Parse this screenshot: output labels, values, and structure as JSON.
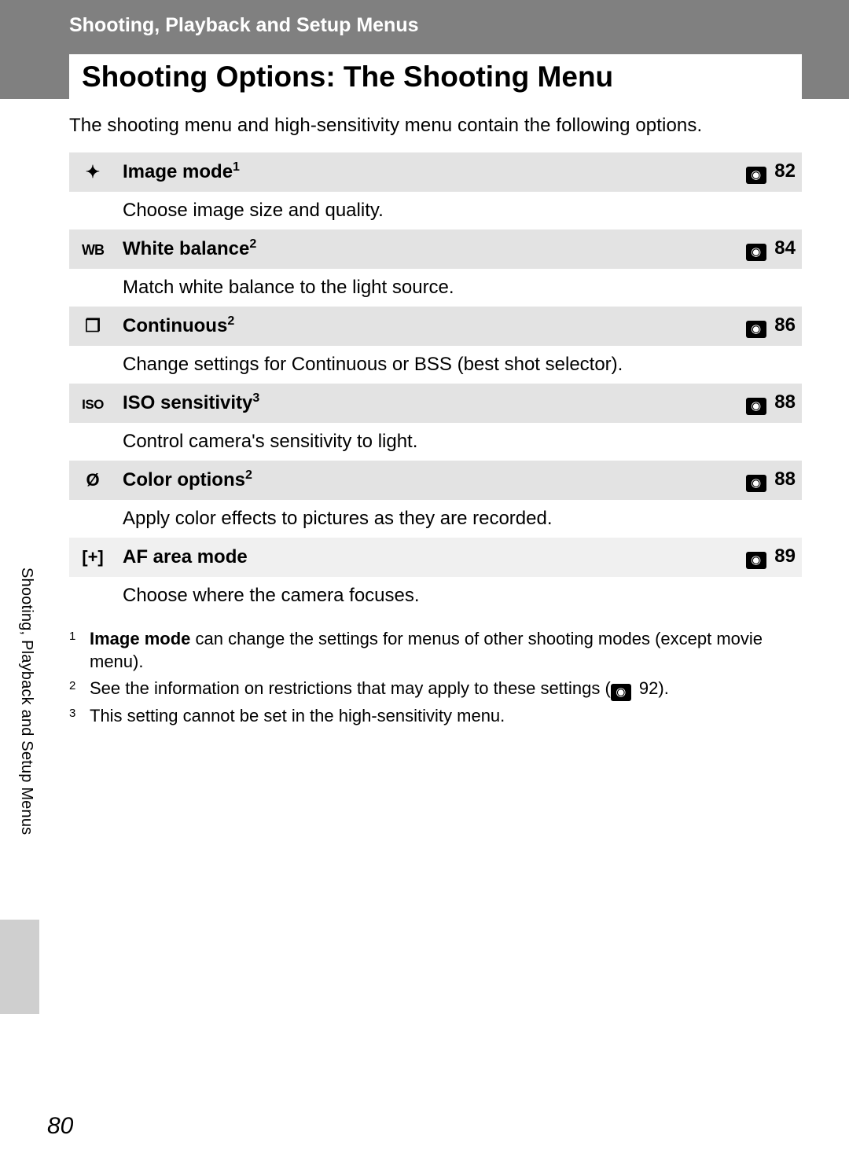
{
  "header": {
    "section_label": "Shooting, Playback and Setup Menus",
    "page_title": "Shooting Options: The Shooting Menu"
  },
  "intro": "The shooting menu and high-sensitivity menu contain the following options.",
  "colors": {
    "header_bg": "#808080",
    "row_header_bg": "#e3e3e3",
    "row_header_alt_bg": "#f0f0f0",
    "row_desc_bg": "#ffffff",
    "ref_icon_bg": "#000000",
    "ref_icon_fg": "#ffffff",
    "side_block_bg": "#cfcfcf"
  },
  "rows": [
    {
      "icon_name": "image-mode-icon",
      "icon_glyph": "✦",
      "title": "Image mode",
      "sup": "1",
      "page_ref": "82",
      "desc": "Choose image size and quality.",
      "alt": false
    },
    {
      "icon_name": "white-balance-icon",
      "icon_glyph": "WB",
      "icon_class": "wb-icon",
      "title": "White balance",
      "sup": "2",
      "page_ref": "84",
      "desc": "Match white balance to the light source.",
      "alt": false
    },
    {
      "icon_name": "continuous-icon",
      "icon_glyph": "❐",
      "title": "Continuous",
      "sup": "2",
      "page_ref": "86",
      "desc": "Change settings for Continuous or BSS (best shot selector).",
      "alt": false
    },
    {
      "icon_name": "iso-sensitivity-icon",
      "icon_glyph": "ISO",
      "icon_class": "iso-icon",
      "title": "ISO sensitivity",
      "sup": "3",
      "page_ref": "88",
      "desc": "Control camera's sensitivity to light.",
      "alt": false
    },
    {
      "icon_name": "color-options-icon",
      "icon_glyph": "Ø",
      "title": "Color options",
      "sup": "2",
      "page_ref": "88",
      "desc": "Apply color effects to pictures as they are recorded.",
      "alt": false
    },
    {
      "icon_name": "af-area-mode-icon",
      "icon_glyph": "[+]",
      "title": "AF area mode",
      "sup": "",
      "page_ref": "89",
      "desc": "Choose where the camera focuses.",
      "alt": true
    }
  ],
  "footnotes": {
    "f1_num": "1",
    "f1_bold": "Image mode",
    "f1_rest": " can change the settings for menus of other shooting modes (except movie menu).",
    "f2_num": "2",
    "f2_pre": "See the information on restrictions that may apply to these settings (",
    "f2_ref": "92",
    "f2_post": ").",
    "f3_num": "3",
    "f3_text": "This setting cannot be set in the high-sensitivity menu."
  },
  "side_tab": "Shooting, Playback and Setup Menus",
  "page_number": "80"
}
